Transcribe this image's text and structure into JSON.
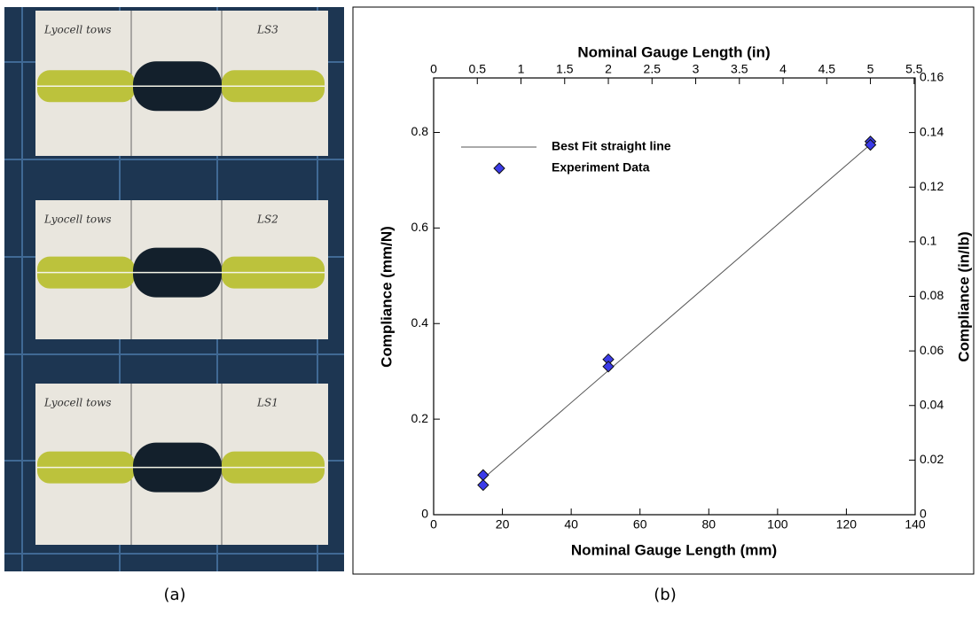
{
  "chart_data": {
    "type": "scatter",
    "xlabel": "Nominal Gauge Length (mm)",
    "x2label": "Nominal Gauge Length (in)",
    "ylabel": "Compliance (mm/N)",
    "y2label": "Compliance (in/lb)",
    "xlim": [
      0,
      140
    ],
    "xticks": [
      0,
      20,
      40,
      60,
      80,
      100,
      120,
      140
    ],
    "x2lim": [
      0,
      5.512
    ],
    "x2ticks": [
      0,
      0.5,
      1,
      1.5,
      2,
      2.5,
      3,
      3.5,
      4,
      4.5,
      5,
      5.5
    ],
    "ylim": [
      0,
      0.914
    ],
    "yticks": [
      0,
      0.2,
      0.4,
      0.6,
      0.8
    ],
    "y2lim": [
      0,
      0.16
    ],
    "y2ticks": [
      0,
      0.02,
      0.04,
      0.06,
      0.08,
      0.1,
      0.12,
      0.14,
      0.16
    ],
    "legend": "upper left",
    "series": [
      {
        "name": "Best Fit straight line",
        "type": "line",
        "color": "#555555",
        "x": [
          14,
          127
        ],
        "values": [
          0.073,
          0.775
        ]
      },
      {
        "name": "Experiment Data",
        "type": "scatter",
        "color": "#3b3be8",
        "x": [
          14.4,
          14.4,
          50.8,
          50.8,
          127,
          127
        ],
        "values": [
          0.083,
          0.062,
          0.325,
          0.31,
          0.781,
          0.774
        ]
      }
    ]
  },
  "photo": {
    "labels": [
      [
        "Lyocell tows",
        "LS3"
      ],
      [
        "Lyocell tows",
        "LS2"
      ],
      [
        "Lyocell tows",
        "LS1"
      ]
    ]
  },
  "captions": [
    "(a)",
    "(b)"
  ]
}
